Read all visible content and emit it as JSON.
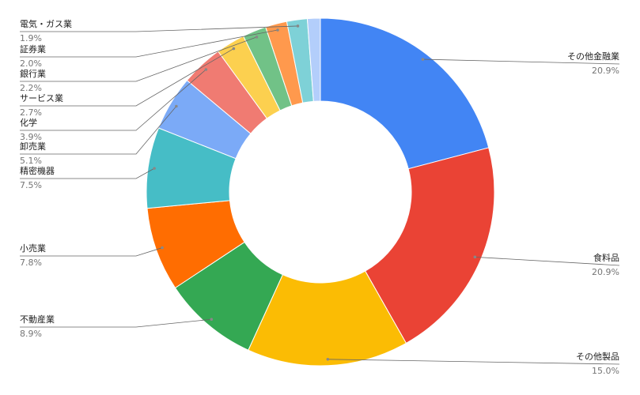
{
  "chart_data": {
    "type": "donut",
    "categories": [
      "その他金融業",
      "食料品",
      "その他製品",
      "不動産業",
      "小売業",
      "精密機器",
      "卸売業",
      "化学",
      "サービス業",
      "銀行業",
      "証券業",
      "電気・ガス業",
      null
    ],
    "values": [
      20.9,
      20.9,
      15.0,
      8.9,
      7.8,
      7.5,
      5.1,
      3.9,
      2.7,
      2.2,
      2.0,
      1.9,
      1.2
    ],
    "value_labels": [
      "20.9%",
      "20.9%",
      "15.0%",
      "8.9%",
      "7.8%",
      "7.5%",
      "5.1%",
      "3.9%",
      "2.7%",
      "2.2%",
      "2.0%",
      "1.9%",
      null
    ],
    "colors": [
      "#4285f4",
      "#ea4335",
      "#fbbc04",
      "#34a853",
      "#ff6d01",
      "#46bdc6",
      "#7baaf7",
      "#f07b72",
      "#fcd04f",
      "#71c287",
      "#ff994d",
      "#7ed1d7",
      "#b3cefb"
    ]
  }
}
